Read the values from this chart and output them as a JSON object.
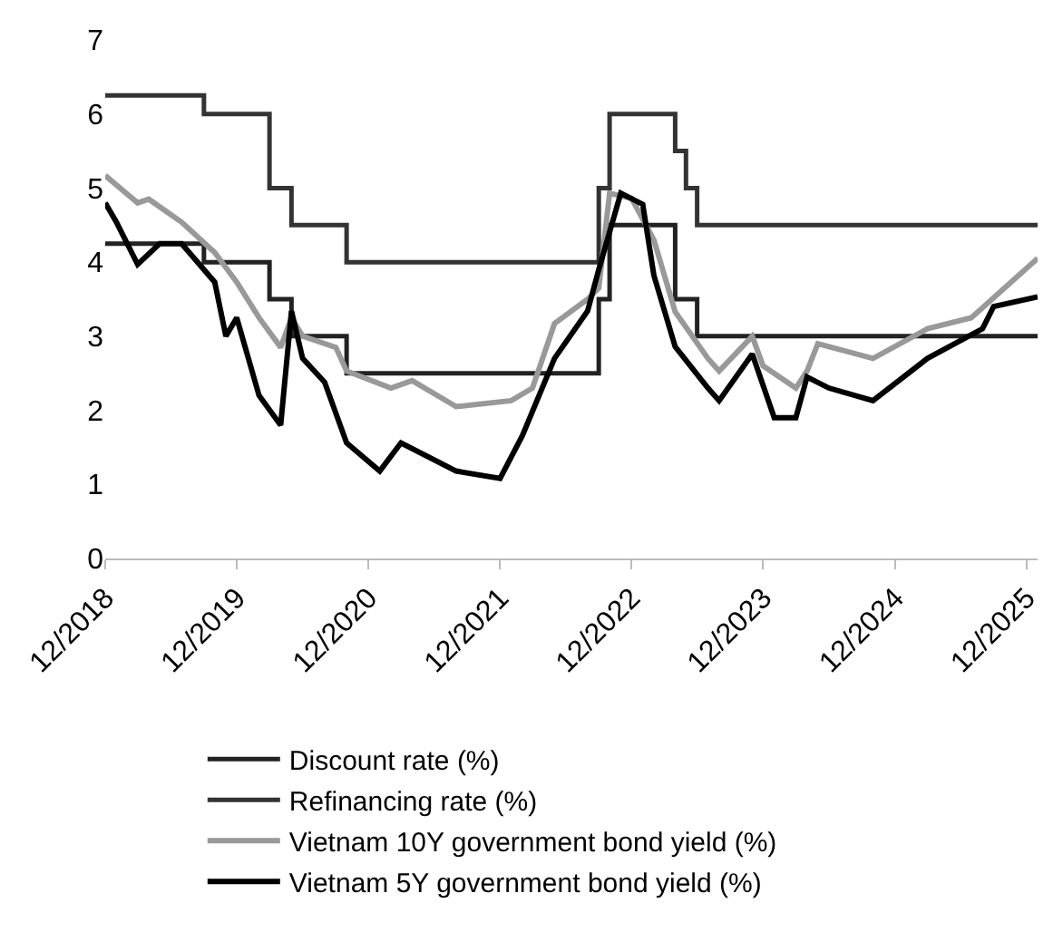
{
  "chart_data": {
    "type": "line",
    "xlim": [
      "2018-12",
      "2026-01"
    ],
    "xticks": [
      {
        "value": "2018-12",
        "label": "12/2018"
      },
      {
        "value": "2019-12",
        "label": "12/2019"
      },
      {
        "value": "2020-12",
        "label": "12/2020"
      },
      {
        "value": "2021-12",
        "label": "12/2021"
      },
      {
        "value": "2022-12",
        "label": "12/2022"
      },
      {
        "value": "2023-12",
        "label": "12/2023"
      },
      {
        "value": "2024-12",
        "label": "12/2024"
      },
      {
        "value": "2025-12",
        "label": "12/2025"
      }
    ],
    "ylim": [
      0,
      7
    ],
    "yticks": [
      0,
      1,
      2,
      3,
      4,
      5,
      6,
      7
    ],
    "grid": false,
    "legend": "bottom",
    "series": [
      {
        "name": "Discount rate (%)",
        "type": "step",
        "color": "#222222",
        "x": [
          "2018-12",
          "2019-09",
          "2020-03",
          "2020-05",
          "2020-10",
          "2022-09",
          "2022-10",
          "2023-04",
          "2023-06",
          "2026-01"
        ],
        "values": [
          4.25,
          4,
          3.5,
          3,
          2.5,
          3.5,
          4.5,
          3.5,
          3,
          3
        ]
      },
      {
        "name": "Refinancing rate (%)",
        "type": "step",
        "color": "#333333",
        "x": [
          "2018-12",
          "2019-09",
          "2020-03",
          "2020-05",
          "2020-10",
          "2022-09",
          "2022-10",
          "2023-04",
          "2023-05",
          "2023-06",
          "2026-01"
        ],
        "values": [
          6.25,
          6,
          5,
          4.5,
          4,
          5,
          6,
          5.5,
          5,
          4.5,
          4.5
        ]
      },
      {
        "name": "Vietnam 10Y government bond yield (%)",
        "color": "#999999",
        "x": [
          "2018-12",
          "2019-03",
          "2019-04",
          "2019-07",
          "2019-10",
          "2019-12",
          "2020-02",
          "2020-04",
          "2020-05",
          "2020-06",
          "2020-09",
          "2020-10",
          "2021-02",
          "2021-04",
          "2021-08",
          "2022-01",
          "2022-03",
          "2022-05",
          "2022-08",
          "2022-09",
          "2022-10",
          "2022-12",
          "2023-02",
          "2023-04",
          "2023-07",
          "2023-08",
          "2023-11",
          "2023-12",
          "2024-03",
          "2024-04",
          "2024-05",
          "2024-10",
          "2025-03",
          "2025-07",
          "2026-01"
        ],
        "values": [
          5.17,
          4.8,
          4.85,
          4.54,
          4.13,
          3.73,
          3.25,
          2.85,
          3.25,
          3.0,
          2.85,
          2.53,
          2.3,
          2.4,
          2.05,
          2.13,
          2.3,
          3.17,
          3.5,
          3.65,
          4.93,
          4.86,
          4.3,
          3.33,
          2.7,
          2.53,
          3.0,
          2.6,
          2.3,
          2.53,
          2.9,
          2.7,
          3.1,
          3.25,
          4.05
        ]
      },
      {
        "name": "Vietnam 5Y government bond yield (%)",
        "color": "#000000",
        "x": [
          "2018-12",
          "2019-01",
          "2019-03",
          "2019-05",
          "2019-07",
          "2019-10",
          "2019-11",
          "2019-12",
          "2020-02",
          "2020-04",
          "2020-05",
          "2020-06",
          "2020-08",
          "2020-10",
          "2021-01",
          "2021-03",
          "2021-08",
          "2021-12",
          "2022-02",
          "2022-05",
          "2022-08",
          "2022-09",
          "2022-11",
          "2023-01",
          "2023-02",
          "2023-04",
          "2023-07",
          "2023-08",
          "2023-11",
          "2024-01",
          "2024-03",
          "2024-04",
          "2024-06",
          "2024-10",
          "2025-03",
          "2025-08",
          "2025-09",
          "2026-01"
        ],
        "values": [
          4.8,
          4.54,
          3.97,
          4.25,
          4.25,
          3.73,
          3.0,
          3.25,
          2.2,
          1.8,
          3.34,
          2.7,
          2.38,
          1.56,
          1.18,
          1.56,
          1.18,
          1.08,
          1.66,
          2.7,
          3.34,
          3.9,
          4.93,
          4.78,
          3.82,
          2.86,
          2.3,
          2.13,
          2.76,
          1.9,
          1.9,
          2.45,
          2.3,
          2.13,
          2.7,
          3.1,
          3.4,
          3.53
        ]
      }
    ]
  }
}
